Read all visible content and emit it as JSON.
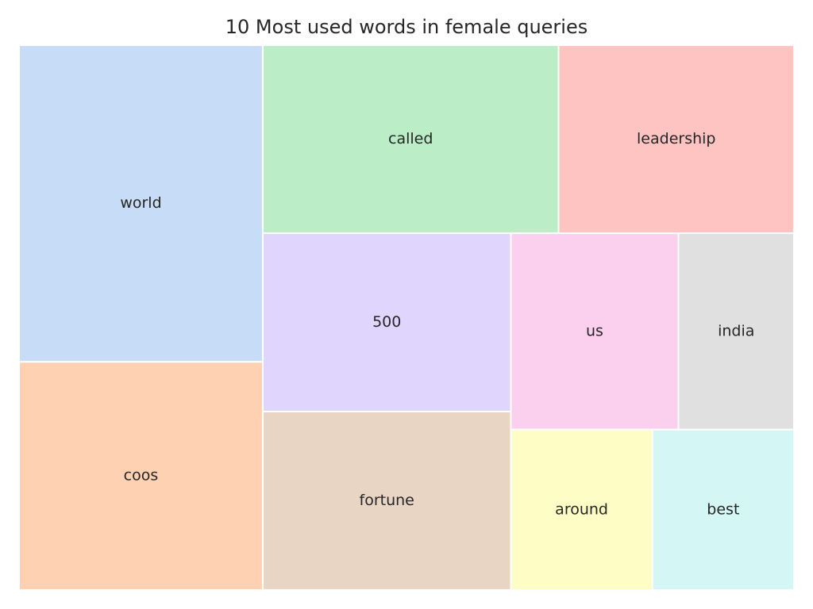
{
  "chart_data": {
    "type": "treemap",
    "title": "10 Most used words in female queries",
    "items": [
      {
        "label": "world",
        "value": 68,
        "color": "#c7dcf6"
      },
      {
        "label": "coos",
        "value": 49,
        "color": "#fed1b3"
      },
      {
        "label": "called",
        "value": 49,
        "color": "#bbeec6"
      },
      {
        "label": "leadership",
        "value": 39,
        "color": "#fec4c2"
      },
      {
        "label": "500",
        "value": 39,
        "color": "#e0d5fd"
      },
      {
        "label": "fortune",
        "value": 39,
        "color": "#e8d5c4"
      },
      {
        "label": "us",
        "value": 29,
        "color": "#fbd0ef"
      },
      {
        "label": "india",
        "value": 20,
        "color": "#e0e0e0"
      },
      {
        "label": "around",
        "value": 20,
        "color": "#fefdc6"
      },
      {
        "label": "best",
        "value": 20,
        "color": "#d4f6f5"
      }
    ]
  }
}
